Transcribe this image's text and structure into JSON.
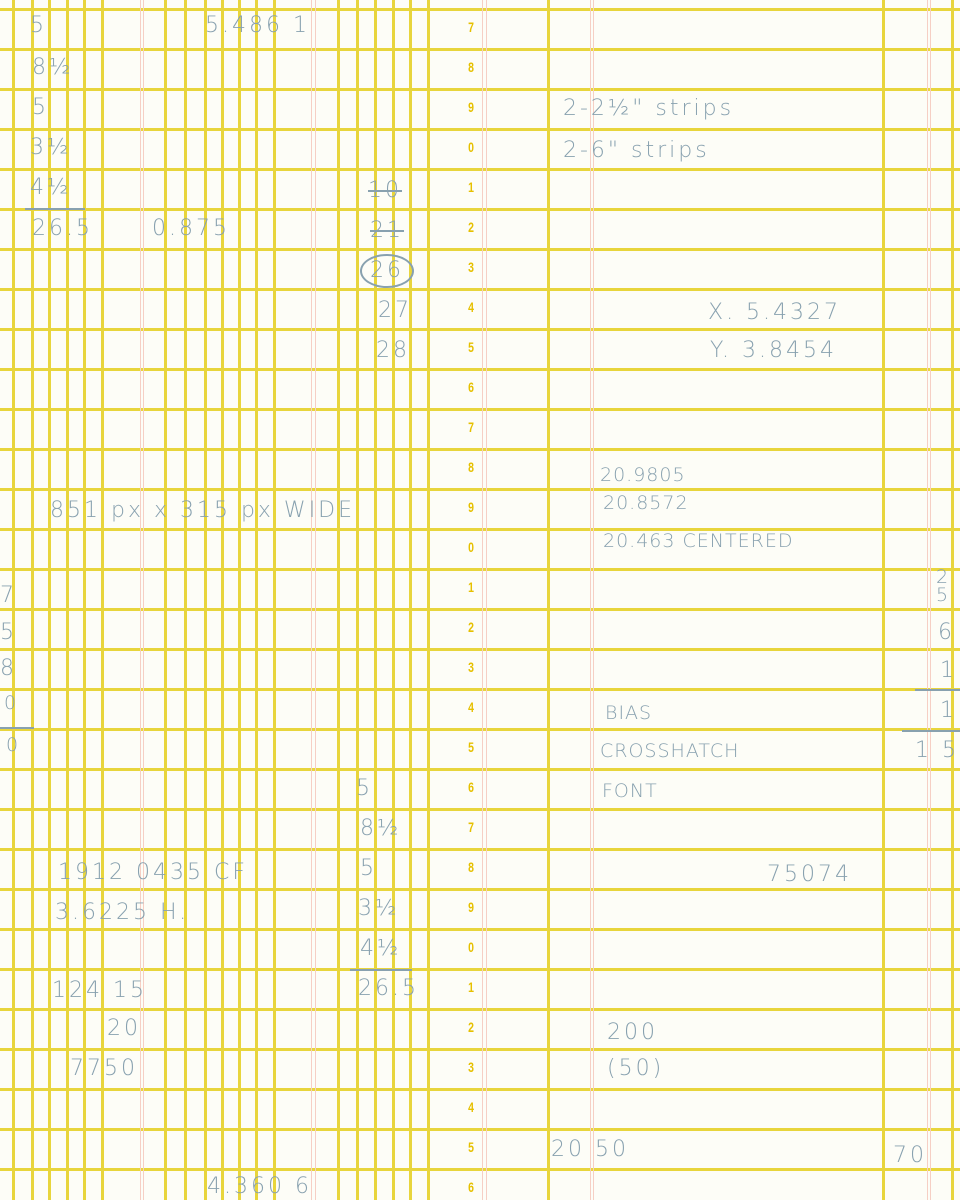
{
  "paper": {
    "grid_color": "#e8d53c",
    "margin_line_color": "#f6cfc4",
    "ink_color": "#88a1af",
    "row_number_color": "#e6c000",
    "row_numbers": [
      "7",
      "8",
      "9",
      "0",
      "1",
      "2",
      "3",
      "4",
      "5",
      "6",
      "7",
      "8",
      "9",
      "0",
      "1",
      "2",
      "3",
      "4",
      "5",
      "6",
      "7",
      "8",
      "9",
      "0",
      "1",
      "2",
      "3",
      "4",
      "5",
      "6"
    ]
  },
  "notes": [
    "5",
    "5.486 1",
    "8½",
    "5",
    "3½",
    "4½",
    "26.5",
    "0.875",
    "10",
    "21",
    "26",
    "27",
    "28",
    "851 px x 315 px WIDE",
    "7",
    "5",
    "8",
    "0",
    "0",
    "5",
    "8½",
    "5",
    "3½",
    "4½",
    "26.5",
    "1912 0435 CF",
    "3.6225 H.",
    "124 15",
    "20",
    "7750",
    "4.360 6",
    "2-2½\" strips",
    "2-6\" strips",
    "X. 5.4327",
    "Y. 3.8454",
    "20.9805",
    "20.8572",
    "20.463 CENTERED",
    "2",
    "5",
    "6",
    "1",
    "1",
    "1 5",
    "BIAS",
    "CROSSHATCH",
    "FONT",
    "75074",
    "200",
    "(50)",
    "20 50",
    "70"
  ]
}
